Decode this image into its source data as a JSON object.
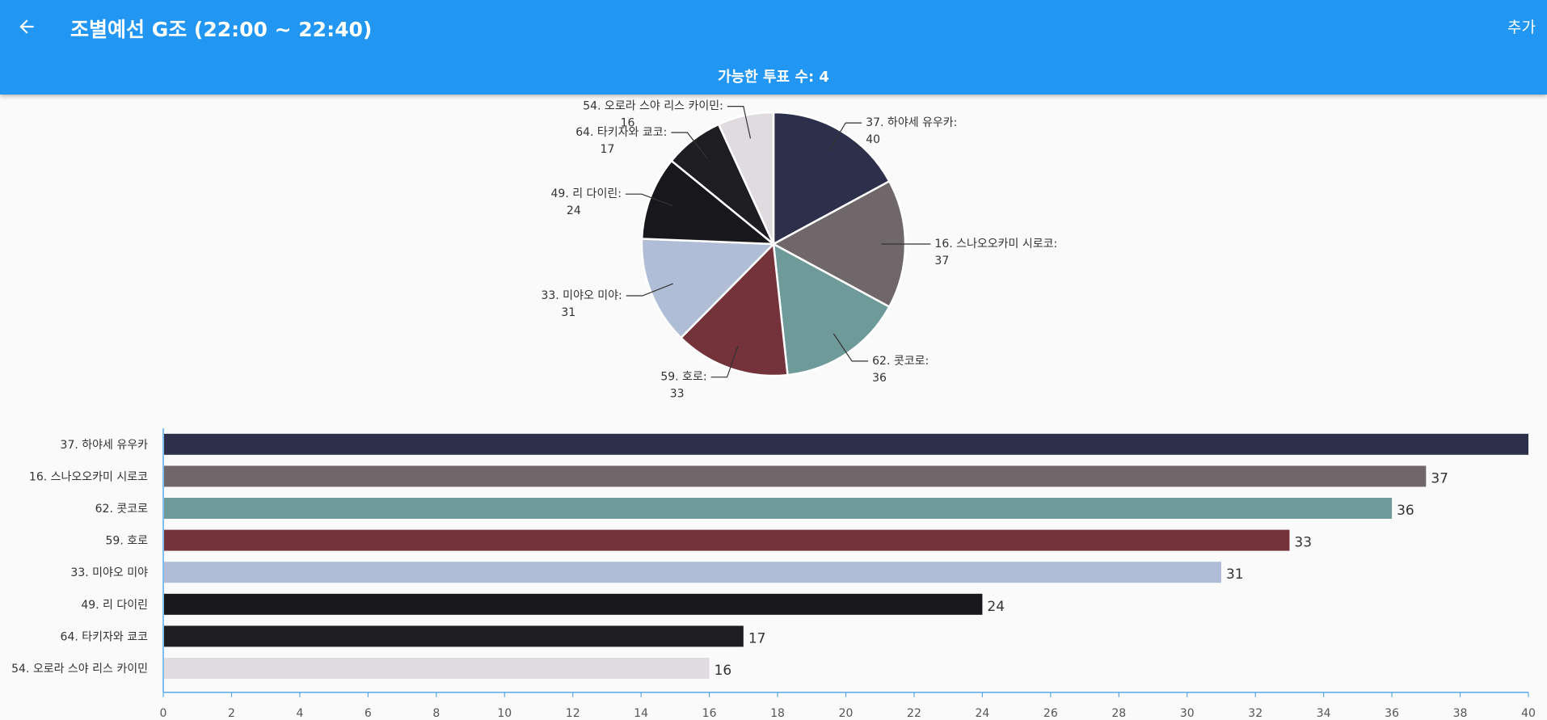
{
  "header": {
    "back_icon": "arrow-left-icon",
    "title": "조별예선 G조 (22:00 ~ 22:40)",
    "action_label": "추가",
    "vote_label": "가능한 투표 수:",
    "vote_count": "4",
    "color": "#2196f3"
  },
  "chart_data": [
    {
      "type": "pie",
      "labels": [
        "37. 하야세 유우카",
        "16. 스나오오카미 시로코",
        "62. 콧코로",
        "59. 호로",
        "33. 미야오 미야",
        "49. 리 다이린",
        "64. 타키자와 쿄코",
        "54. 오로라 스야 리스 카이민"
      ],
      "values": [
        40,
        37,
        36,
        33,
        31,
        24,
        17,
        16
      ],
      "colors": [
        "#2d2f4b",
        "#6f6769",
        "#6e9b99",
        "#74323b",
        "#b0bdd6",
        "#18171b",
        "#1e1e22",
        "#e0dbdf"
      ]
    },
    {
      "type": "bar",
      "orientation": "horizontal",
      "categories": [
        "37. 하야세 유우카",
        "16. 스나오오카미 시로코",
        "62. 콧코로",
        "59. 호로",
        "33. 미야오 미야",
        "49. 리 다이린",
        "64. 타키자와 쿄코",
        "54. 오로라 스야 리스 카이민"
      ],
      "values": [
        40,
        37,
        36,
        33,
        31,
        24,
        17,
        16
      ],
      "value_labels": [
        "",
        "37",
        "36",
        "33",
        "31",
        "24",
        "17",
        "16"
      ],
      "xlim": [
        0,
        40
      ],
      "xticks": [
        0,
        2,
        4,
        6,
        8,
        10,
        12,
        14,
        16,
        18,
        20,
        22,
        24,
        26,
        28,
        30,
        32,
        34,
        36,
        38,
        40
      ],
      "colors": [
        "#2d2f4b",
        "#6f6769",
        "#6e9b99",
        "#74323b",
        "#b0bdd6",
        "#18171b",
        "#1e1e22",
        "#e0dbdf"
      ],
      "axis_color": "#5aa9e6"
    }
  ]
}
